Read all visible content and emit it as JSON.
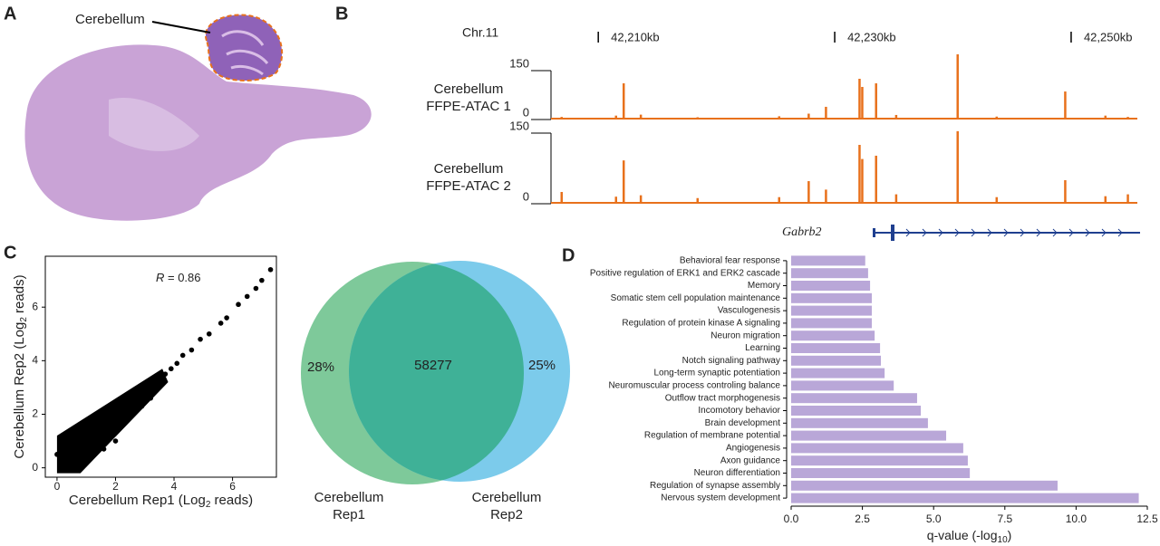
{
  "panel_labels": [
    "A",
    "B",
    "C",
    "D"
  ],
  "histology": {
    "annotation": "Cerebellum"
  },
  "venn": {
    "left_name": "Cerebellum Rep1",
    "right_name": "Cerebellum Rep2",
    "left_only": "28%",
    "overlap": "58277",
    "right_only": "25%"
  },
  "chart_data": [
    {
      "type": "track",
      "chromosome": "Chr.11",
      "gene": "Gabrb2",
      "xlim": [
        42206,
        42255.6
      ],
      "xticks": [
        {
          "value": 42210,
          "label": "42,210kb"
        },
        {
          "value": 42230,
          "label": "42,230kb"
        },
        {
          "value": 42250,
          "label": "42,250kb"
        }
      ],
      "ylim": [
        0,
        150
      ],
      "yticks": [
        0,
        150
      ],
      "series": [
        {
          "name": "Cerebellum FFPE-ATAC 1",
          "color": "#e8711c",
          "x": [
            42206.9,
            42211.5,
            42212.15,
            42213.6,
            42218.4,
            42225.3,
            42227.8,
            42229.26,
            42232.1,
            42232.33,
            42233.5,
            42235.2,
            42240.4,
            42243.7,
            42249.5,
            42252.9,
            42254.8
          ],
          "values": [
            8,
            12,
            111,
            15,
            7,
            10,
            18,
            39,
            125,
            100,
            111,
            14,
            200,
            9,
            86,
            12,
            8
          ]
        },
        {
          "name": "Cerebellum FFPE-ATAC 2",
          "color": "#e8711c",
          "x": [
            42206.9,
            42211.5,
            42212.15,
            42213.6,
            42218.4,
            42225.3,
            42227.8,
            42229.26,
            42232.1,
            42232.33,
            42233.5,
            42235.2,
            42240.4,
            42243.7,
            42249.5,
            42252.9,
            42254.8
          ],
          "values": [
            25,
            15,
            92,
            18,
            12,
            14,
            48,
            30,
            125,
            95,
            102,
            20,
            154,
            14,
            50,
            16,
            20
          ]
        }
      ]
    },
    {
      "type": "scatter",
      "annotation": {
        "symbol": "R",
        "text": " = 0.86"
      },
      "color": "#000000",
      "xlabel": {
        "text": "Cerebellum Rep1 (Log",
        "sub": "2",
        "tail": " reads)"
      },
      "ylabel": {
        "text": "Cerebellum Rep2 (Log",
        "sub": "2",
        "tail": " reads)"
      },
      "xlim": [
        -0.4,
        7.5
      ],
      "ylim": [
        -0.35,
        7.9
      ],
      "xticks": [
        0,
        2,
        4,
        6
      ],
      "yticks": [
        0,
        2,
        4,
        6
      ],
      "x": [
        0.0,
        0.2,
        0.3,
        0.5,
        0.6,
        0.8,
        0.9,
        1.0,
        1.1,
        1.2,
        1.4,
        1.5,
        1.6,
        1.8,
        1.9,
        2.0,
        2.2,
        2.3,
        2.5,
        2.6,
        2.8,
        2.9,
        3.1,
        3.2,
        3.4,
        3.5,
        3.7,
        3.9,
        4.1,
        4.3,
        4.6,
        4.9,
        5.2,
        5.6,
        5.8,
        6.2,
        6.5,
        6.8,
        7.0,
        7.3
      ],
      "y": [
        0.5,
        0.9,
        0.1,
        1.0,
        0.3,
        1.3,
        0.6,
        0.2,
        1.5,
        0.8,
        1.7,
        1.1,
        0.7,
        2.0,
        1.4,
        1.0,
        2.3,
        1.7,
        2.5,
        2.0,
        2.8,
        2.3,
        3.0,
        2.6,
        3.3,
        3.0,
        3.5,
        3.7,
        3.9,
        4.2,
        4.4,
        4.8,
        5.0,
        5.4,
        5.6,
        6.1,
        6.4,
        6.7,
        7.0,
        7.4
      ]
    },
    {
      "type": "hbar",
      "color": "#b9a7d8",
      "xlabel": {
        "text": "q-value (-log",
        "sub": "10",
        "tail": ")"
      },
      "xlim": [
        0,
        12.5
      ],
      "xticks": [
        {
          "value": 0,
          "label": "0.0"
        },
        {
          "value": 2.5,
          "label": "2.5"
        },
        {
          "value": 5,
          "label": "5.0"
        },
        {
          "value": 7.5,
          "label": "7.5"
        },
        {
          "value": 10,
          "label": "10.0"
        },
        {
          "value": 12.5,
          "label": "12.5"
        }
      ],
      "categories": [
        "Behavioral fear response",
        "Positive regulation of ERK1 and ERK2 cascade",
        "Memory",
        "Somatic stem cell population maintenance",
        "Vasculogenesis",
        "Regulation of protein kinase A signaling",
        "Neuron migration",
        "Learning",
        "Notch signaling pathway",
        "Long-term synaptic potentiation",
        "Neuromuscular process controling balance",
        "Outflow tract morphogenesis",
        "Incomotory behavior",
        "Brain development",
        "Regulation of membrane potential",
        "Angiogenesis",
        "Axon guidance",
        "Neuron differentiation",
        "Regulation of synapse assembly",
        "Nervous system development"
      ],
      "values": [
        2.6,
        2.7,
        2.77,
        2.83,
        2.83,
        2.83,
        2.93,
        3.12,
        3.15,
        3.28,
        3.6,
        4.42,
        4.55,
        4.8,
        5.44,
        6.04,
        6.2,
        6.27,
        9.35,
        12.2
      ]
    }
  ]
}
